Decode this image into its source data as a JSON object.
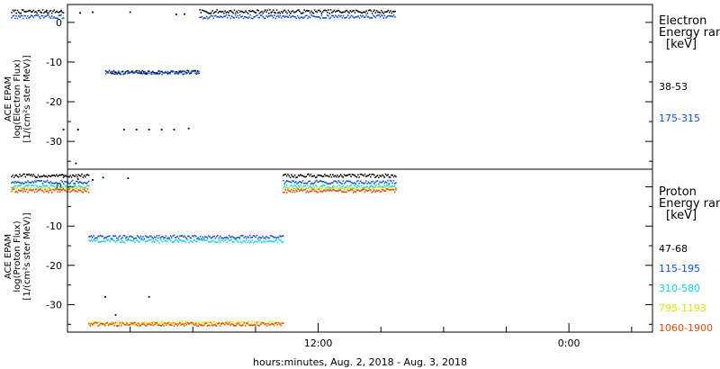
{
  "chart_data": [
    {
      "type": "scatter",
      "ylabel": [
        "ACE EPAM",
        "log(Electron Flux)",
        "[1/(cm²s ster MeV)]"
      ],
      "ylim": [
        -37,
        4.5
      ],
      "yticks": [
        0,
        -10,
        -20,
        -30
      ],
      "legend": {
        "title_lines": [
          "Electron",
          "Energy ran",
          "[keV]"
        ],
        "placement": "right"
      },
      "series": [
        {
          "name": "38-53",
          "color": "#000000",
          "segments": [
            {
              "x0": -2.7,
              "x1": -0.2,
              "y": 2.7
            },
            {
              "x0": 1.8,
              "x1": 6.3,
              "y": -12.6
            },
            {
              "x0": 6.3,
              "x1": 15.7,
              "y": 2.7
            }
          ],
          "points": [
            [
              -0.3,
              3.0
            ],
            [
              0.6,
              2.4
            ],
            [
              1.2,
              2.6
            ],
            [
              3.0,
              2.6
            ],
            [
              5.2,
              2.0
            ],
            [
              5.6,
              2.1
            ],
            [
              -0.2,
              -27.0
            ],
            [
              0.5,
              -27.0
            ],
            [
              2.7,
              -27.0
            ],
            [
              3.3,
              -27.0
            ],
            [
              3.9,
              -27.0
            ],
            [
              4.5,
              -27.0
            ],
            [
              5.1,
              -27.0
            ],
            [
              5.8,
              -26.7
            ],
            [
              0.4,
              -35.5
            ],
            [
              -1.0,
              3.0
            ]
          ]
        },
        {
          "name": "175-315",
          "color": "#1450c8",
          "segments": [
            {
              "x0": -2.7,
              "x1": -0.2,
              "y": 1.4
            },
            {
              "x0": 1.8,
              "x1": 6.3,
              "y": -12.7
            },
            {
              "x0": 6.3,
              "x1": 15.7,
              "y": 1.4
            }
          ],
          "points": []
        }
      ]
    },
    {
      "type": "scatter",
      "ylabel": [
        "ACE EPAM",
        "log(Proton Flux)",
        "[1/(cm²s ster MeV)]"
      ],
      "ylim": [
        -37,
        4.5
      ],
      "yticks": [
        0,
        -10,
        -20,
        -30
      ],
      "legend": {
        "title_lines": [
          "Proton",
          "Energy ran",
          "[keV]"
        ],
        "placement": "right"
      },
      "series": [
        {
          "name": "47-68",
          "color": "#000000",
          "segments": [
            {
              "x0": -2.7,
              "x1": 1.0,
              "y": 2.8
            },
            {
              "x0": 10.3,
              "x1": 15.7,
              "y": 2.8
            }
          ],
          "points": [
            [
              -0.2,
              3.0
            ],
            [
              0.5,
              2.0
            ],
            [
              1.2,
              1.8
            ],
            [
              1.7,
              2.4
            ],
            [
              2.9,
              2.2
            ],
            [
              1.8,
              -28.0
            ],
            [
              3.9,
              -28.0
            ],
            [
              2.3,
              -32.6
            ]
          ]
        },
        {
          "name": "115-195",
          "color": "#1450c8",
          "segments": [
            {
              "x0": -2.7,
              "x1": 1.0,
              "y": 1.2
            },
            {
              "x0": 1.0,
              "x1": 10.3,
              "y": -12.8
            },
            {
              "x0": 10.3,
              "x1": 15.7,
              "y": 1.2
            }
          ],
          "points": []
        },
        {
          "name": "310-580",
          "color": "#18d0e0",
          "segments": [
            {
              "x0": -2.7,
              "x1": 1.0,
              "y": 0.0
            },
            {
              "x0": 1.0,
              "x1": 10.3,
              "y": -13.8
            },
            {
              "x0": 10.3,
              "x1": 15.7,
              "y": 0.0
            }
          ],
          "points": []
        },
        {
          "name": "795-1193",
          "color": "#e0e010",
          "segments": [
            {
              "x0": -2.7,
              "x1": 1.0,
              "y": -0.5
            },
            {
              "x0": 1.0,
              "x1": 10.3,
              "y": -34.7
            },
            {
              "x0": 10.3,
              "x1": 15.7,
              "y": -0.5
            }
          ],
          "points": []
        },
        {
          "name": "1060-1900",
          "color": "#e04a08",
          "segments": [
            {
              "x0": -2.7,
              "x1": 1.0,
              "y": -1.0
            },
            {
              "x0": 1.0,
              "x1": 10.3,
              "y": -35.0
            },
            {
              "x0": 10.3,
              "x1": 15.7,
              "y": -1.0
            }
          ],
          "points": []
        }
      ]
    }
  ],
  "x_axis": {
    "unit": "hours since start of Aug. 2, 2018",
    "xlim": [
      0,
      28
    ],
    "major_ticks": [
      {
        "x": 12,
        "label": "12:00"
      },
      {
        "x": 24,
        "label": "0:00"
      }
    ],
    "minor_ticks": [
      0,
      3,
      6,
      9,
      15,
      18,
      21,
      27
    ],
    "title": "hours:minutes, Aug.  2, 2018 - Aug.  3, 2018"
  }
}
